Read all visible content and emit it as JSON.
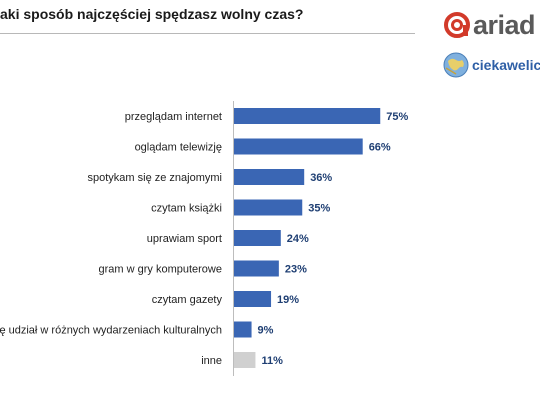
{
  "header": {
    "title": "aki sposób najczęściej spędzasz wolny czas?",
    "logo_text": "ariad",
    "logo_icon": "ariadna-logo-icon",
    "site_text": "ciekawelicz",
    "site_icon": "globe-icon",
    "brand_color": "#d23a2a"
  },
  "chart_data": {
    "type": "bar",
    "orientation": "horizontal",
    "categories": [
      "przeglądam internet",
      "oglądam telewizję",
      "spotykam się ze znajomymi",
      "czytam książki",
      "uprawiam sport",
      "gram w gry komputerowe",
      "czytam gazety",
      "ę udział w różnych wydarzeniach kulturalnych",
      "inne"
    ],
    "values": [
      75,
      66,
      36,
      35,
      24,
      23,
      19,
      9,
      11
    ],
    "value_labels": [
      "75%",
      "66%",
      "36%",
      "35%",
      "24%",
      "23%",
      "19%",
      "9%",
      "11%"
    ],
    "unit": "%",
    "colors": [
      "#3a66b4",
      "#3a66b4",
      "#3a66b4",
      "#3a66b4",
      "#3a66b4",
      "#3a66b4",
      "#3a66b4",
      "#3a66b4",
      "#d0d0d0"
    ],
    "xlim": [
      0,
      100
    ],
    "grid": false,
    "legend": "none"
  }
}
